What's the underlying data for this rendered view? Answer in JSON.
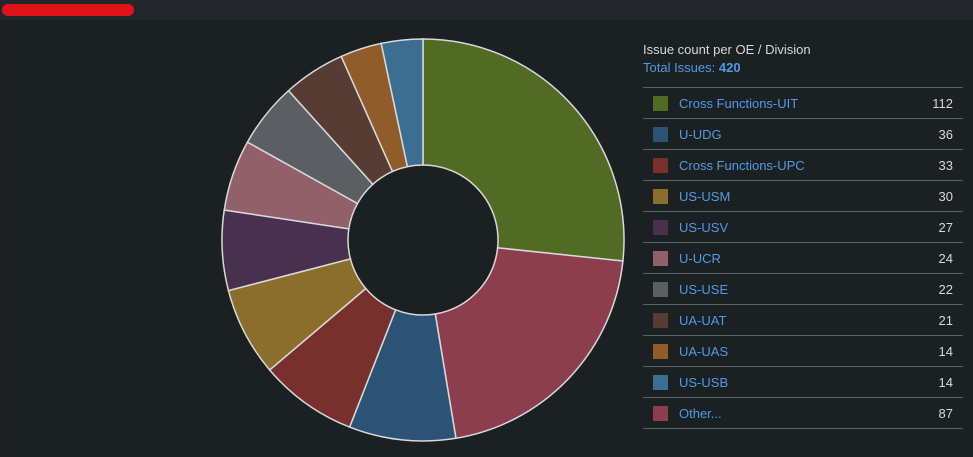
{
  "chart_data": {
    "type": "pie",
    "title": "Issue count per OE / Division",
    "total_label": "Total Issues:",
    "total_value": "420",
    "categories": [
      "Cross Functions-UIT",
      "U-UDG",
      "Cross Functions-UPC",
      "US-USM",
      "US-USV",
      "U-UCR",
      "US-USE",
      "UA-UAT",
      "UA-UAS",
      "US-USB",
      "Other..."
    ],
    "values": [
      112,
      36,
      33,
      30,
      27,
      24,
      22,
      21,
      14,
      14,
      87
    ],
    "colors": [
      "#526b24",
      "#2c5276",
      "#77302c",
      "#8c6e2c",
      "#48314f",
      "#926068",
      "#5b5e63",
      "#563c33",
      "#8f5c2a",
      "#3c6e92",
      "#8c3e4d"
    ],
    "pie_order": [
      0,
      10,
      1,
      2,
      3,
      4,
      5,
      6,
      7,
      8,
      9
    ]
  }
}
